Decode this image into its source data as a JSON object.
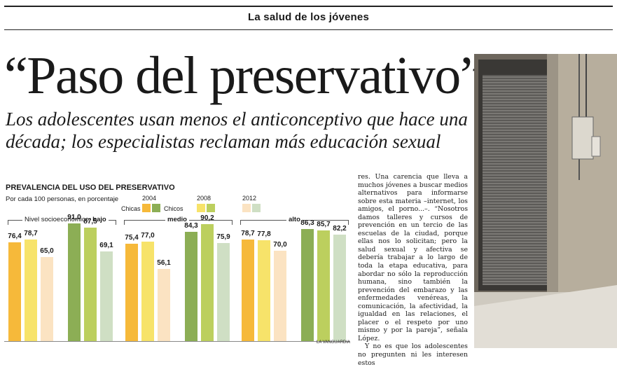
{
  "section": "La salud de los jóvenes",
  "headline": "“Paso del preservativo”",
  "subtitle": "Los adolescentes usan menos el anticonceptivo que hace una década; los especialistas reclaman más educación sexual",
  "chart_data": {
    "type": "bar",
    "title": "PREVALENCIA DEL USO DEL PRESERVATIVO",
    "subtitle": "Por cada 100 personas, en porcentaje",
    "legend": {
      "years": [
        "2004",
        "2008",
        "2012"
      ],
      "girls_label": "Chicas",
      "boys_label": "Chicos",
      "colors": {
        "girls": [
          "#f6b93a",
          "#f7e36a",
          "#fbe3c2"
        ],
        "boys": [
          "#8cae55",
          "#bccf5e",
          "#cfdfc4"
        ]
      }
    },
    "group_prefix": "Nivel socioeconómico:",
    "groups": [
      {
        "label": "bajo",
        "girls": [
          76.4,
          78.7,
          65.0
        ],
        "boys": [
          91.0,
          87.5,
          69.1
        ]
      },
      {
        "label": "medio",
        "girls": [
          75.4,
          77.0,
          56.1
        ],
        "boys": [
          84.3,
          90.2,
          75.9
        ]
      },
      {
        "label": "alto",
        "girls": [
          78.7,
          77.8,
          70.0
        ],
        "boys": [
          86.3,
          85.7,
          82.2
        ]
      }
    ],
    "value_labels": [
      [
        "76,4",
        "78,7",
        "65,0",
        "91,0",
        "87,5",
        "69,1"
      ],
      [
        "75,4",
        "77,0",
        "56,1",
        "84,3",
        "90,2",
        "75,9"
      ],
      [
        "78,7",
        "77,8",
        "70,0",
        "86,3",
        "85,7",
        "82,2"
      ]
    ],
    "ylim": [
      0,
      100
    ],
    "credit": "LA VANGUARDIA"
  },
  "body_text": [
    "res. Una carencia que lleva a muchos jóvenes a buscar medios alternativos para informarse sobre esta materia –internet, los amigos, el porno...–. “Nosotros damos talleres y cursos de prevención en un tercio de las escuelas de la ciudad, porque ellas nos lo solicitan; pero la salud sexual y afectiva se debería trabajar a lo largo de toda la etapa educativa, para abordar no sólo la reproducción humana, sino también la prevención del embarazo y las enfermedades venéreas, la comunicación, la afectividad, la igualdad en las relaciones, el placer o el respeto por uno mismo y por la pareja”, señala López.",
    "Y no es que los adolescentes no pregunten ni les interesen estos"
  ]
}
